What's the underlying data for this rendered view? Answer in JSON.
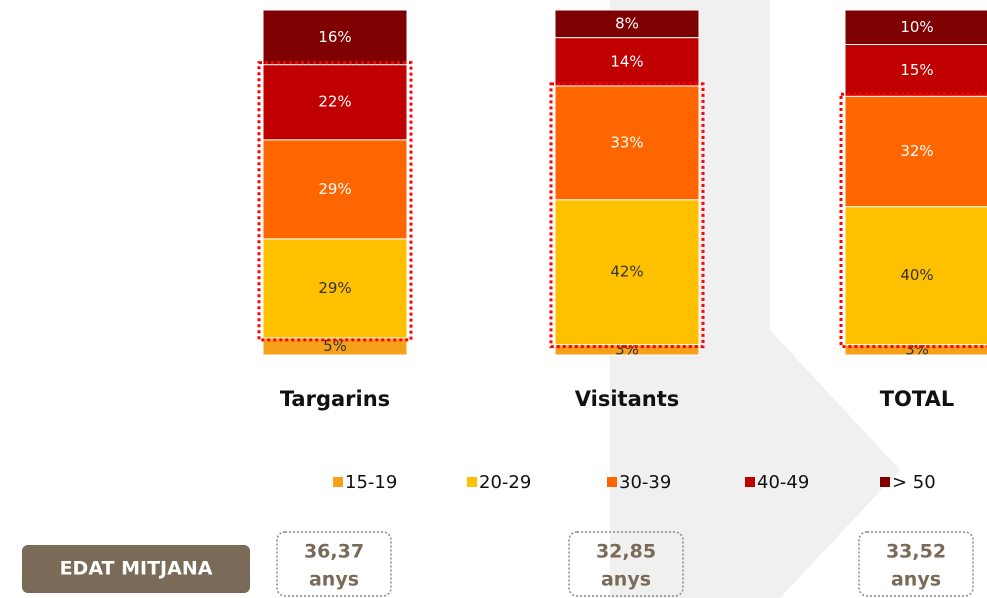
{
  "chart_data": {
    "type": "stacked_bar",
    "categories": [
      "Targarins",
      "Visitants",
      "TOTAL"
    ],
    "series": [
      {
        "name": "15-19",
        "color": "#f7a11a",
        "values": [
          5,
          3,
          3
        ],
        "value_labels": [
          "5%",
          "3%",
          "3%"
        ]
      },
      {
        "name": "20-29",
        "color": "#ffc000",
        "values": [
          29,
          42,
          40
        ],
        "value_labels": [
          "29%",
          "42%",
          "40%"
        ]
      },
      {
        "name": "30-39",
        "color": "#ff6600",
        "values": [
          29,
          33,
          32
        ],
        "value_labels": [
          "29%",
          "33%",
          "32%"
        ]
      },
      {
        "name": "40-49",
        "color": "#c00000",
        "values": [
          22,
          14,
          15
        ],
        "value_labels": [
          "22%",
          "14%",
          "15%"
        ]
      },
      {
        "name": "> 50",
        "color": "#7f0000",
        "values": [
          16,
          8,
          10
        ],
        "value_labels": [
          "16%",
          "8%",
          "10%"
        ]
      }
    ],
    "mean_age": {
      "label": "EDAT MITJANA",
      "values": [
        "36,37",
        "32,85",
        "33,52"
      ],
      "units": [
        "anys",
        "anys",
        "anys"
      ]
    }
  }
}
